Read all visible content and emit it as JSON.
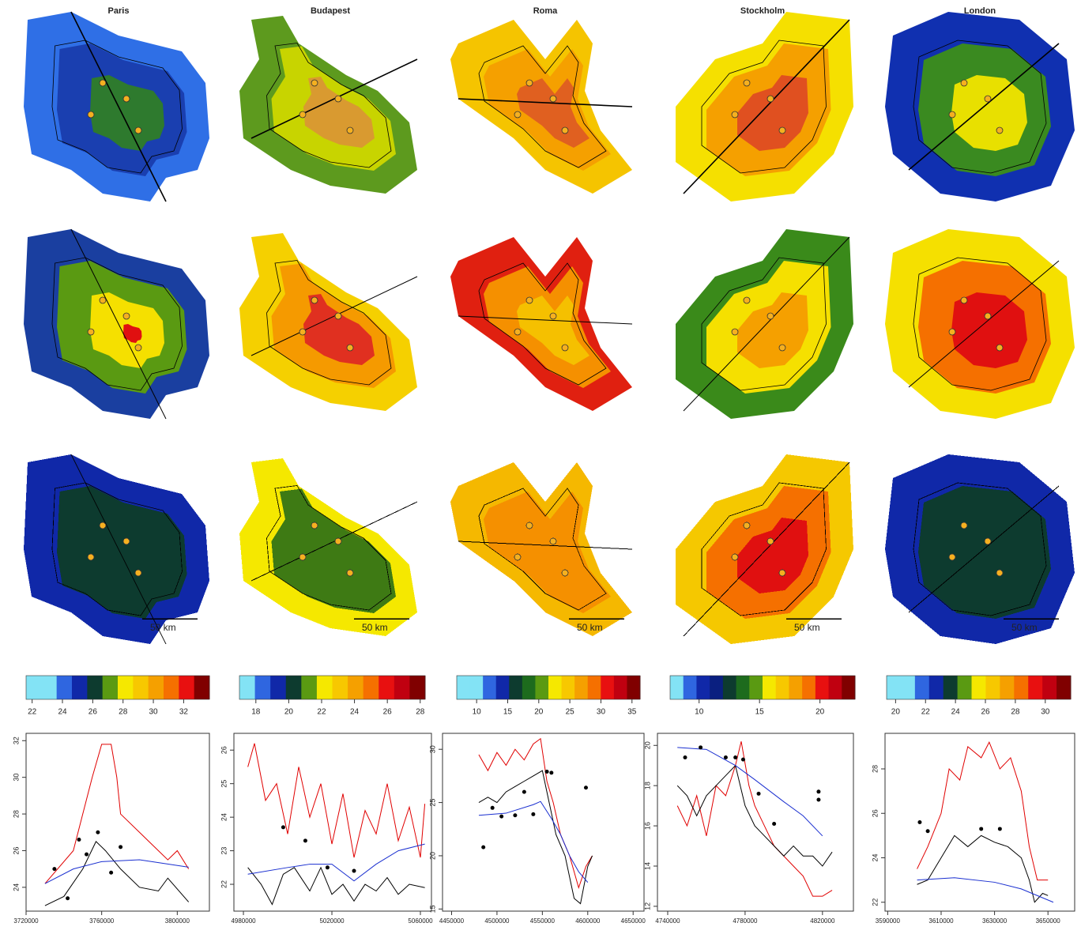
{
  "maps": [
    {
      "scale_label": "50 km"
    },
    {
      "scale_label": "50 km"
    },
    {
      "scale_label": "50 km"
    },
    {
      "scale_label": "50 km"
    },
    {
      "scale_label": "50 km"
    }
  ],
  "chart_data": [
    {
      "type": "line",
      "title": "Paris",
      "colorbar": {
        "colors": [
          "#83e3f5",
          "#83e3f5",
          "#2f66e0",
          "#1028a8",
          "#0d3b2f",
          "#5a9a12",
          "#f5e800",
          "#f7c800",
          "#f5a000",
          "#f57000",
          "#e81010",
          "#800000"
        ],
        "xlim": [
          21.6,
          33.7
        ],
        "xticks": [
          22,
          24,
          26,
          28,
          30,
          32
        ]
      },
      "xlim": [
        3720000,
        3817000
      ],
      "ylim": [
        22.7,
        32.4
      ],
      "xticks": [
        3720000,
        3760000,
        3800000
      ],
      "yticks": [
        24,
        26,
        28,
        30,
        32
      ],
      "series": [
        {
          "color": "#e00000",
          "x": [
            3730000,
            3745000,
            3750000,
            3755000,
            3760000,
            3765000,
            3768000,
            3770000,
            3780000,
            3790000,
            3795000,
            3800000,
            3806000
          ],
          "values": [
            24.2,
            26,
            28,
            30,
            31.8,
            31.8,
            30,
            28,
            27,
            26,
            25.5,
            26,
            25
          ]
        },
        {
          "color": "#000000",
          "x": [
            3730000,
            3740000,
            3750000,
            3757000,
            3762000,
            3770000,
            3780000,
            3790000,
            3795000,
            3806000
          ],
          "values": [
            23,
            23.5,
            25,
            26.5,
            26,
            25,
            24,
            23.8,
            24.5,
            23.2
          ]
        },
        {
          "color": "#1a2fd0",
          "x": [
            3730000,
            3745000,
            3760000,
            3780000,
            3806000
          ],
          "values": [
            24.2,
            25,
            25.4,
            25.5,
            25.1
          ]
        },
        {
          "color": "#000000",
          "marker": "dot",
          "x": [
            3735000,
            3742000,
            3748000,
            3752000,
            3758000,
            3765000,
            3770000
          ],
          "values": [
            25,
            23.4,
            26.6,
            25.8,
            27,
            24.8,
            26.2
          ]
        }
      ]
    },
    {
      "type": "line",
      "title": "Budapest",
      "colorbar": {
        "colors": [
          "#83e3f5",
          "#2f66e0",
          "#1028a8",
          "#0d3b2f",
          "#5a9a12",
          "#f5e800",
          "#f7c800",
          "#f5a000",
          "#f57000",
          "#e81010",
          "#c00010",
          "#800000"
        ],
        "xlim": [
          17.0,
          28.3
        ],
        "xticks": [
          18,
          20,
          22,
          24,
          26,
          28
        ]
      },
      "xlim": [
        4975700,
        5065000
      ],
      "ylim": [
        21.2,
        26.5
      ],
      "xticks": [
        4980000,
        5020000,
        5060000
      ],
      "yticks": [
        22,
        23,
        24,
        25,
        26
      ],
      "series": [
        {
          "color": "#e00000",
          "x": [
            4982000,
            4985000,
            4990000,
            4995000,
            5000000,
            5005000,
            5010000,
            5015000,
            5020000,
            5025000,
            5030000,
            5035000,
            5040000,
            5045000,
            5050000,
            5055000,
            5060000,
            5062000
          ],
          "values": [
            25.5,
            26.2,
            24.5,
            25,
            23.5,
            25.5,
            24,
            25,
            23.2,
            24.7,
            22.8,
            24.2,
            23.5,
            25,
            23.3,
            24.3,
            22.8,
            24.4
          ]
        },
        {
          "color": "#000000",
          "x": [
            4982000,
            4988000,
            4993000,
            4998000,
            5003000,
            5010000,
            5015000,
            5020000,
            5025000,
            5030000,
            5035000,
            5040000,
            5045000,
            5050000,
            5055000,
            5062000
          ],
          "values": [
            22.5,
            22,
            21.4,
            22.3,
            22.5,
            21.8,
            22.5,
            21.7,
            22,
            21.5,
            22,
            21.8,
            22.2,
            21.7,
            22,
            21.9
          ]
        },
        {
          "color": "#1a2fd0",
          "x": [
            4982000,
            5000000,
            5010000,
            5020000,
            5030000,
            5040000,
            5050000,
            5062000
          ],
          "values": [
            22.3,
            22.5,
            22.6,
            22.6,
            22.1,
            22.6,
            23,
            23.2
          ]
        },
        {
          "color": "#000000",
          "marker": "dot",
          "x": [
            4998000,
            5008000,
            5018000,
            5030000
          ],
          "values": [
            23.7,
            23.3,
            22.5,
            22.4
          ]
        }
      ]
    },
    {
      "type": "line",
      "title": "Roma",
      "colorbar": {
        "colors": [
          "#83e3f5",
          "#83e3f5",
          "#2f66e0",
          "#1028a8",
          "#0d3b2f",
          "#1d6b1d",
          "#5a9a12",
          "#f5e800",
          "#f7c800",
          "#f5a000",
          "#f57000",
          "#e81010",
          "#c00010",
          "#800000"
        ],
        "xlim": [
          6.8,
          36.3
        ],
        "xticks": [
          10,
          15,
          20,
          25,
          30,
          35
        ]
      },
      "xlim": [
        4440000,
        4662000
      ],
      "ylim": [
        14.8,
        31.5
      ],
      "xticks": [
        4450000,
        4500000,
        4550000,
        4600000,
        4650000
      ],
      "yticks": [
        15,
        20,
        25,
        30
      ],
      "series": [
        {
          "color": "#e00000",
          "x": [
            4480000,
            4490000,
            4500000,
            4510000,
            4520000,
            4530000,
            4540000,
            4548000,
            4555000,
            4562000,
            4570000,
            4580000,
            4590000,
            4598000,
            4605000
          ],
          "values": [
            29.5,
            28,
            29.7,
            28.5,
            30,
            29,
            30.5,
            31,
            27,
            25,
            22,
            20,
            17,
            19,
            20
          ]
        },
        {
          "color": "#000000",
          "x": [
            4480000,
            4490000,
            4500000,
            4510000,
            4520000,
            4530000,
            4540000,
            4550000,
            4555000,
            4565000,
            4575000,
            4585000,
            4592000,
            4600000,
            4605000
          ],
          "values": [
            25,
            25.5,
            25,
            26,
            26.5,
            27,
            27.5,
            28,
            26,
            22,
            20,
            16,
            15.5,
            19,
            20
          ]
        },
        {
          "color": "#1a2fd0",
          "x": [
            4480000,
            4510000,
            4540000,
            4548000,
            4560000,
            4570000,
            4580000,
            4590000,
            4600000
          ],
          "values": [
            23.8,
            24,
            24.8,
            25.1,
            23.5,
            22,
            20,
            18.5,
            17.5
          ]
        },
        {
          "color": "#000000",
          "marker": "dot",
          "x": [
            4485000,
            4495000,
            4505000,
            4520000,
            4530000,
            4540000,
            4555000,
            4560000,
            4598000
          ],
          "values": [
            20.8,
            24.5,
            23.7,
            23.8,
            26,
            23.9,
            27.9,
            27.8,
            26.4
          ]
        }
      ]
    },
    {
      "type": "line",
      "title": "Stockholm",
      "colorbar": {
        "colors": [
          "#83e3f5",
          "#2f66e0",
          "#1028a8",
          "#0a1f80",
          "#0d3b2f",
          "#1d6b1d",
          "#5a9a12",
          "#f5e800",
          "#f7c800",
          "#f5a000",
          "#f57000",
          "#e81010",
          "#c00010",
          "#800000"
        ],
        "xlim": [
          7.6,
          22.9
        ],
        "xticks": [
          10,
          15,
          20
        ]
      },
      "xlim": [
        4734700,
        4836000
      ],
      "ylim": [
        11.76,
        20.6
      ],
      "xticks": [
        4740000,
        4780000,
        4820000
      ],
      "yticks": [
        12,
        14,
        16,
        18,
        20
      ],
      "series": [
        {
          "color": "#e00000",
          "x": [
            4745000,
            4750000,
            4755000,
            4760000,
            4765000,
            4770000,
            4775000,
            4778000,
            4782000,
            4785000,
            4790000,
            4795000,
            4800000,
            4805000,
            4810000,
            4815000,
            4820000,
            4825000
          ],
          "values": [
            17,
            16,
            17.5,
            15.5,
            18,
            17.5,
            19,
            20.2,
            18,
            17,
            16,
            15,
            14.5,
            14,
            13.5,
            12.5,
            12.5,
            12.8
          ]
        },
        {
          "color": "#000000",
          "x": [
            4745000,
            4750000,
            4755000,
            4760000,
            4765000,
            4770000,
            4775000,
            4780000,
            4785000,
            4790000,
            4795000,
            4800000,
            4805000,
            4810000,
            4815000,
            4820000,
            4825000
          ],
          "values": [
            18,
            17.5,
            16.5,
            17.5,
            18,
            18.5,
            19,
            17,
            16,
            15.5,
            15,
            14.5,
            15,
            14.5,
            14.5,
            14,
            14.7
          ]
        },
        {
          "color": "#1a2fd0",
          "x": [
            4745000,
            4760000,
            4775000,
            4785000,
            4800000,
            4810000,
            4820000
          ],
          "values": [
            19.9,
            19.8,
            19,
            18.3,
            17.2,
            16.5,
            15.5
          ]
        },
        {
          "color": "#000000",
          "marker": "dot",
          "x": [
            4749000,
            4757000,
            4770000,
            4775000,
            4779000,
            4787000,
            4795000,
            4818000,
            4818000
          ],
          "values": [
            19.4,
            19.9,
            19.4,
            19.4,
            19.3,
            17.6,
            16.1,
            17.7,
            17.3
          ]
        }
      ]
    },
    {
      "type": "line",
      "title": "London",
      "colorbar": {
        "colors": [
          "#83e3f5",
          "#83e3f5",
          "#2f66e0",
          "#1028a8",
          "#0d3b2f",
          "#5a9a12",
          "#f5e800",
          "#f7c800",
          "#f5a000",
          "#f57000",
          "#e81010",
          "#c00010",
          "#800000"
        ],
        "xlim": [
          19.4,
          31.7
        ],
        "xticks": [
          20,
          22,
          24,
          26,
          28,
          30
        ]
      },
      "xlim": [
        3589000,
        3660000
      ],
      "ylim": [
        21.6,
        29.6
      ],
      "xticks": [
        3590000,
        3610000,
        3630000,
        3650000
      ],
      "yticks": [
        22,
        24,
        26,
        28
      ],
      "series": [
        {
          "color": "#e00000",
          "x": [
            3601000,
            3605000,
            3610000,
            3613000,
            3617000,
            3620000,
            3625000,
            3628000,
            3632000,
            3636000,
            3640000,
            3643000,
            3646000,
            3650000
          ],
          "values": [
            23.5,
            24.5,
            26,
            28,
            27.5,
            29,
            28.5,
            29.2,
            28,
            28.5,
            27,
            24.5,
            23,
            23
          ]
        },
        {
          "color": "#000000",
          "x": [
            3601000,
            3605000,
            3610000,
            3615000,
            3620000,
            3625000,
            3630000,
            3635000,
            3640000,
            3643000,
            3645000,
            3648000,
            3650000
          ],
          "values": [
            22.8,
            23,
            24,
            25,
            24.5,
            25,
            24.7,
            24.5,
            24,
            23,
            22,
            22.4,
            22.3
          ]
        },
        {
          "color": "#1a2fd0",
          "x": [
            3601000,
            3615000,
            3630000,
            3640000,
            3652000
          ],
          "values": [
            23,
            23.1,
            22.9,
            22.6,
            22
          ]
        },
        {
          "color": "#000000",
          "marker": "dot",
          "x": [
            3602000,
            3605000,
            3625000,
            3632000
          ],
          "values": [
            25.6,
            25.2,
            25.3,
            25.3
          ]
        }
      ]
    }
  ]
}
